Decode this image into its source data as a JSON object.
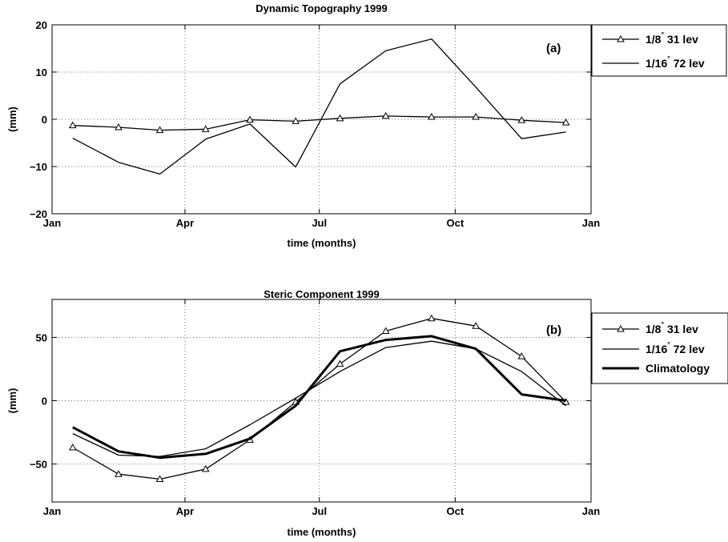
{
  "chart_data": [
    {
      "type": "line",
      "title": "Dynamic Topography 1999",
      "panel_label": "(a)",
      "xlabel": "time (months)",
      "ylabel": "(mm)",
      "ylim": [
        -20,
        20
      ],
      "xlim": [
        "1999-01-01",
        "2000-01-01"
      ],
      "xticks": [
        {
          "label": "Jan",
          "date": "1999-01-01"
        },
        {
          "label": "Apr",
          "date": "1999-04-01"
        },
        {
          "label": "Jul",
          "date": "1999-07-01"
        },
        {
          "label": "Oct",
          "date": "1999-10-01"
        },
        {
          "label": "Jan",
          "date": "2000-01-01"
        }
      ],
      "yticks": [
        {
          "label": "20",
          "value": 20
        },
        {
          "label": "10",
          "value": 10
        },
        {
          "label": "0",
          "value": 0
        },
        {
          "label": "−10",
          "value": -10
        },
        {
          "label": "−20",
          "value": -20
        }
      ],
      "grid": true,
      "legend_position": "outside-right",
      "x": [
        "1999-01-15",
        "1999-02-15",
        "1999-03-15",
        "1999-04-15",
        "1999-05-15",
        "1999-06-15",
        "1999-07-15",
        "1999-08-15",
        "1999-09-15",
        "1999-10-15",
        "1999-11-15",
        "1999-12-15"
      ],
      "series": [
        {
          "name_main": "1/8",
          "name_sup": "°",
          "name_rest": " 31 lev",
          "marker": "triangle",
          "width": 1.3,
          "values": [
            -1.3,
            -1.7,
            -2.3,
            -2.1,
            -0.1,
            -0.4,
            0.2,
            0.7,
            0.5,
            0.5,
            -0.2,
            -0.7
          ]
        },
        {
          "name_main": "1/16",
          "name_sup": "°",
          "name_rest": " 72 lev",
          "marker": "none",
          "width": 1.3,
          "values": [
            -4.0,
            -9.1,
            -11.6,
            -4.2,
            -1.0,
            -10.1,
            7.5,
            14.5,
            17.0,
            6.8,
            -4.1,
            -2.7
          ]
        }
      ]
    },
    {
      "type": "line",
      "title": "Steric Component 1999",
      "panel_label": "(b)",
      "xlabel": "time (months)",
      "ylabel": "(mm)",
      "ylim": [
        -80,
        80
      ],
      "xlim": [
        "1999-01-01",
        "2000-01-01"
      ],
      "xticks": [
        {
          "label": "Jan",
          "date": "1999-01-01"
        },
        {
          "label": "Apr",
          "date": "1999-04-01"
        },
        {
          "label": "Jul",
          "date": "1999-07-01"
        },
        {
          "label": "Oct",
          "date": "1999-10-01"
        },
        {
          "label": "Jan",
          "date": "2000-01-01"
        }
      ],
      "yticks": [
        {
          "label": "50",
          "value": 50
        },
        {
          "label": "0",
          "value": 0
        },
        {
          "label": "−50",
          "value": -50
        }
      ],
      "grid": true,
      "legend_position": "outside-right",
      "x": [
        "1999-01-15",
        "1999-02-15",
        "1999-03-15",
        "1999-04-15",
        "1999-05-15",
        "1999-06-15",
        "1999-07-15",
        "1999-08-15",
        "1999-09-15",
        "1999-10-15",
        "1999-11-15",
        "1999-12-15"
      ],
      "series": [
        {
          "name_main": "1/8",
          "name_sup": "°",
          "name_rest": " 31 lev",
          "marker": "triangle",
          "width": 1.3,
          "values": [
            -37,
            -58,
            -62,
            -54,
            -31,
            -1,
            29,
            55,
            65,
            59,
            35,
            -1
          ]
        },
        {
          "name_main": "1/16",
          "name_sup": "°",
          "name_rest": " 72 lev",
          "marker": "none",
          "width": 1.3,
          "values": [
            -26,
            -43,
            -44,
            -38,
            -19,
            2,
            23,
            42,
            47,
            41,
            23,
            -4
          ]
        },
        {
          "name_main": "Climatology",
          "name_sup": "",
          "name_rest": "",
          "marker": "none",
          "width": 3,
          "values": [
            -21,
            -40,
            -45,
            -42,
            -30,
            -4,
            39,
            48,
            51,
            41,
            5,
            0
          ]
        }
      ]
    }
  ]
}
